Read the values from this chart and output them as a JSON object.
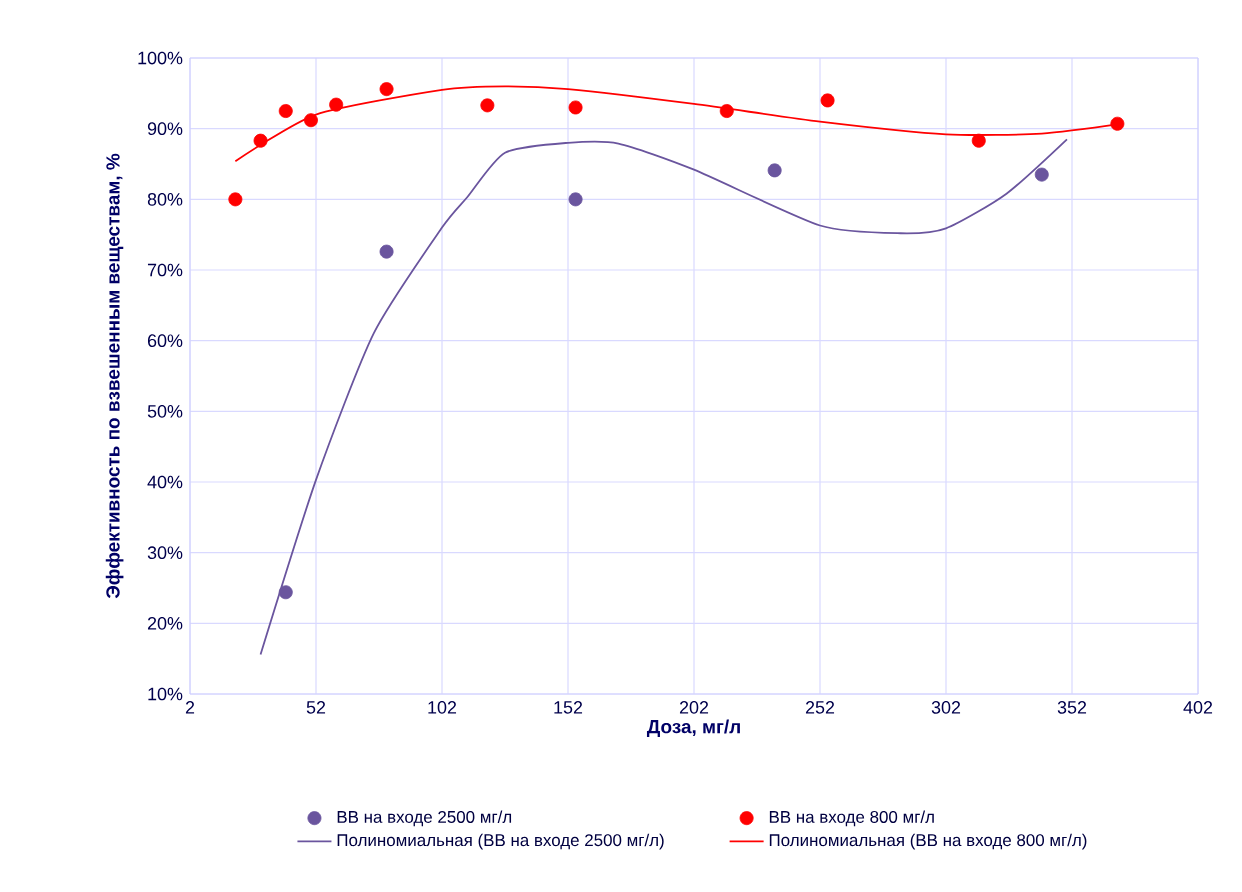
{
  "chart_data": {
    "type": "scatter",
    "xlabel": "Доза, мг/л",
    "ylabel": "Эффективность по взвешенным веществам, %",
    "xlim": [
      2,
      402
    ],
    "xticks": [
      2,
      52,
      102,
      152,
      202,
      252,
      302,
      352,
      402
    ],
    "ylim": [
      10,
      100
    ],
    "yticks": [
      {
        "value": 10,
        "label": "10%"
      },
      {
        "value": 20,
        "label": "20%"
      },
      {
        "value": 30,
        "label": "30%"
      },
      {
        "value": 40,
        "label": "40%"
      },
      {
        "value": 50,
        "label": "50%"
      },
      {
        "value": 60,
        "label": "60%"
      },
      {
        "value": 70,
        "label": "70%"
      },
      {
        "value": 80,
        "label": "80%"
      },
      {
        "value": 90,
        "label": "90%"
      },
      {
        "value": 100,
        "label": "100%"
      }
    ],
    "grid": true,
    "legend": "bottom",
    "series": [
      {
        "name": "ВВ на входе 2500 мг/л",
        "marker": "circle",
        "color": "#6a559e",
        "x": [
          40,
          80,
          155,
          234,
          340
        ],
        "values": [
          24.4,
          72.6,
          80,
          84.1,
          83.5
        ]
      },
      {
        "name": "ВВ на входе 800 мг/л",
        "marker": "circle",
        "color": "#ff0000",
        "x": [
          20,
          30,
          40,
          50,
          60,
          80,
          120,
          155,
          215,
          255,
          315,
          370
        ],
        "values": [
          80,
          88.3,
          92.5,
          91.2,
          93.4,
          95.6,
          93.3,
          93,
          92.5,
          94,
          88.3,
          90.7
        ]
      },
      {
        "name": "Полиномиальная (ВВ на входе 2500 мг/л)",
        "type": "line",
        "marker": "none",
        "color": "#6a559e",
        "x": [
          30,
          52,
          75,
          102,
          112,
          127,
          152,
          172,
          202,
          252,
          284,
          302,
          326,
          350
        ],
        "values": [
          15.6,
          40.3,
          61.1,
          76,
          80.3,
          86.6,
          88,
          87.9,
          84.2,
          76.3,
          75.2,
          75.9,
          80.8,
          88.5
        ]
      },
      {
        "name": "Полиномиальная (ВВ на входе 800 мг/л)",
        "type": "line",
        "marker": "none",
        "color": "#ff0000",
        "x": [
          20,
          52,
          102,
          127,
          152,
          202,
          252,
          302,
          340,
          372
        ],
        "values": [
          85.4,
          92,
          95.5,
          96,
          95.6,
          93.5,
          91,
          89.2,
          89.3,
          90.7
        ]
      }
    ]
  }
}
